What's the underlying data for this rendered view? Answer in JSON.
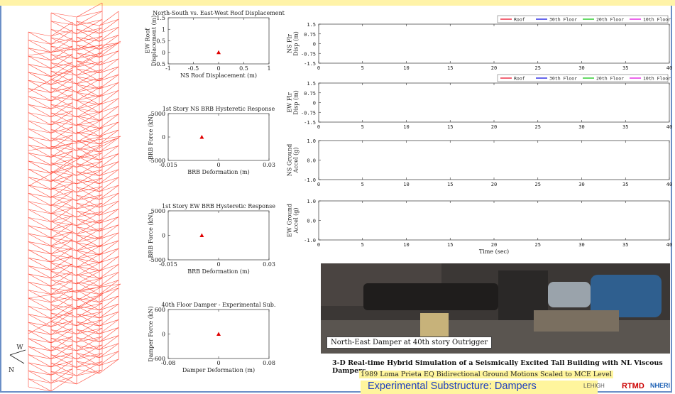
{
  "compass": {
    "w": "W",
    "n": "N"
  },
  "photo_caption": "North-East Damper at 40th story Outrigger",
  "footer": {
    "title": "3-D Real-time Hybrid Simulation of a Seismically Excited Tall Building with NL Viscous Dampers",
    "subtitle": "1989 Loma Prieta EQ Bidirectional Ground Motions Scaled to MCE Level",
    "banner": "Experimental Substructure: Dampers",
    "logos": [
      "LEHIGH",
      "RTMD",
      "NHERI"
    ]
  },
  "colors": {
    "marker": "#e00000",
    "structure": "#ff4a3a",
    "roof": "#e8001c",
    "floor30": "#0000e0",
    "floor20": "#00c000",
    "floor10": "#e000e0",
    "banner_text": "#1f3fbf"
  },
  "chart_data": [
    {
      "type": "scatter",
      "title": "North-South vs. East-West Roof Displacement",
      "xlabel": "NS Roof Displacement (m)",
      "ylabel": "EW Roof\nDisplacement (m)",
      "xlim": [
        -1,
        1
      ],
      "ylim": [
        -0.5,
        1.5
      ],
      "xticks": [
        "-1",
        "-0.5",
        "0",
        "0.5",
        "1"
      ],
      "yticks": [
        "1.5",
        "1",
        "0.5",
        "0",
        "-0.5"
      ],
      "points": [
        {
          "x": 0,
          "y": 0
        }
      ]
    },
    {
      "type": "scatter",
      "title": "1st Story NS BRB Hysteretic Response",
      "xlabel": "BRB Deformation (m)",
      "ylabel": "BRB Force (kN)",
      "xlim": [
        -0.015,
        0.03
      ],
      "ylim": [
        -5000,
        5000
      ],
      "xticks": [
        "-0.015",
        "0",
        "0.03"
      ],
      "yticks": [
        "5000",
        "0",
        "-5000"
      ],
      "points": [
        {
          "x": 0,
          "y": 0
        }
      ]
    },
    {
      "type": "scatter",
      "title": "1st Story EW BRB Hysteretic Response",
      "xlabel": "BRB Deformation (m)",
      "ylabel": "BRB Force (kN)",
      "xlim": [
        -0.015,
        0.03
      ],
      "ylim": [
        -5000,
        5000
      ],
      "xticks": [
        "-0.015",
        "0",
        "0.03"
      ],
      "yticks": [
        "5000",
        "0",
        "-5000"
      ],
      "points": [
        {
          "x": 0,
          "y": 0
        }
      ]
    },
    {
      "type": "scatter",
      "title": "40th Floor Damper - Experimental Sub.",
      "xlabel": "Damper Deformation (m)",
      "ylabel": "Damper Force (kN)",
      "xlim": [
        -0.08,
        0.08
      ],
      "ylim": [
        -600,
        600
      ],
      "xticks": [
        "-0.08",
        "0",
        "0.08"
      ],
      "yticks": [
        "600",
        "0",
        "-600"
      ],
      "points": [
        {
          "x": 0,
          "y": 0
        }
      ]
    },
    {
      "type": "line",
      "title": "",
      "xlabel": "",
      "ylabel": "NS Flr\nDisp (m)",
      "xlim": [
        0,
        40
      ],
      "ylim": [
        -1.5,
        1.5
      ],
      "xticks": [
        "0",
        "5",
        "10",
        "15",
        "20",
        "25",
        "30",
        "35",
        "40"
      ],
      "yticks": [
        "1.5",
        "0.75",
        "0",
        "-0.75",
        "-1.5"
      ],
      "legend": [
        "Roof",
        "30th Floor",
        "20th Floor",
        "10th Floor"
      ],
      "legend_position": "top-right",
      "series": []
    },
    {
      "type": "line",
      "title": "",
      "xlabel": "",
      "ylabel": "EW Flr\nDisp (m)",
      "xlim": [
        0,
        40
      ],
      "ylim": [
        -1.5,
        1.5
      ],
      "xticks": [
        "0",
        "5",
        "10",
        "15",
        "20",
        "25",
        "30",
        "35",
        "40"
      ],
      "yticks": [
        "1.5",
        "0.75",
        "0",
        "-0.75",
        "-1.5"
      ],
      "legend": [
        "Roof",
        "30th Floor",
        "20th Floor",
        "10th Floor"
      ],
      "legend_position": "top-right",
      "series": []
    },
    {
      "type": "line",
      "title": "",
      "xlabel": "",
      "ylabel": "NS Ground\nAccel (g)",
      "xlim": [
        0,
        40
      ],
      "ylim": [
        -1,
        1
      ],
      "xticks": [
        "0",
        "5",
        "10",
        "15",
        "20",
        "25",
        "30",
        "35",
        "40"
      ],
      "yticks": [
        "1.0",
        "0.0",
        "-1.0"
      ],
      "series": []
    },
    {
      "type": "line",
      "title": "",
      "xlabel": "Time (sec)",
      "ylabel": "EW Ground\nAccel (g)",
      "xlim": [
        0,
        40
      ],
      "ylim": [
        -1,
        1
      ],
      "xticks": [
        "0",
        "5",
        "10",
        "15",
        "20",
        "25",
        "30",
        "35",
        "40"
      ],
      "yticks": [
        "1.0",
        "0.0",
        "-1.0"
      ],
      "series": []
    }
  ]
}
